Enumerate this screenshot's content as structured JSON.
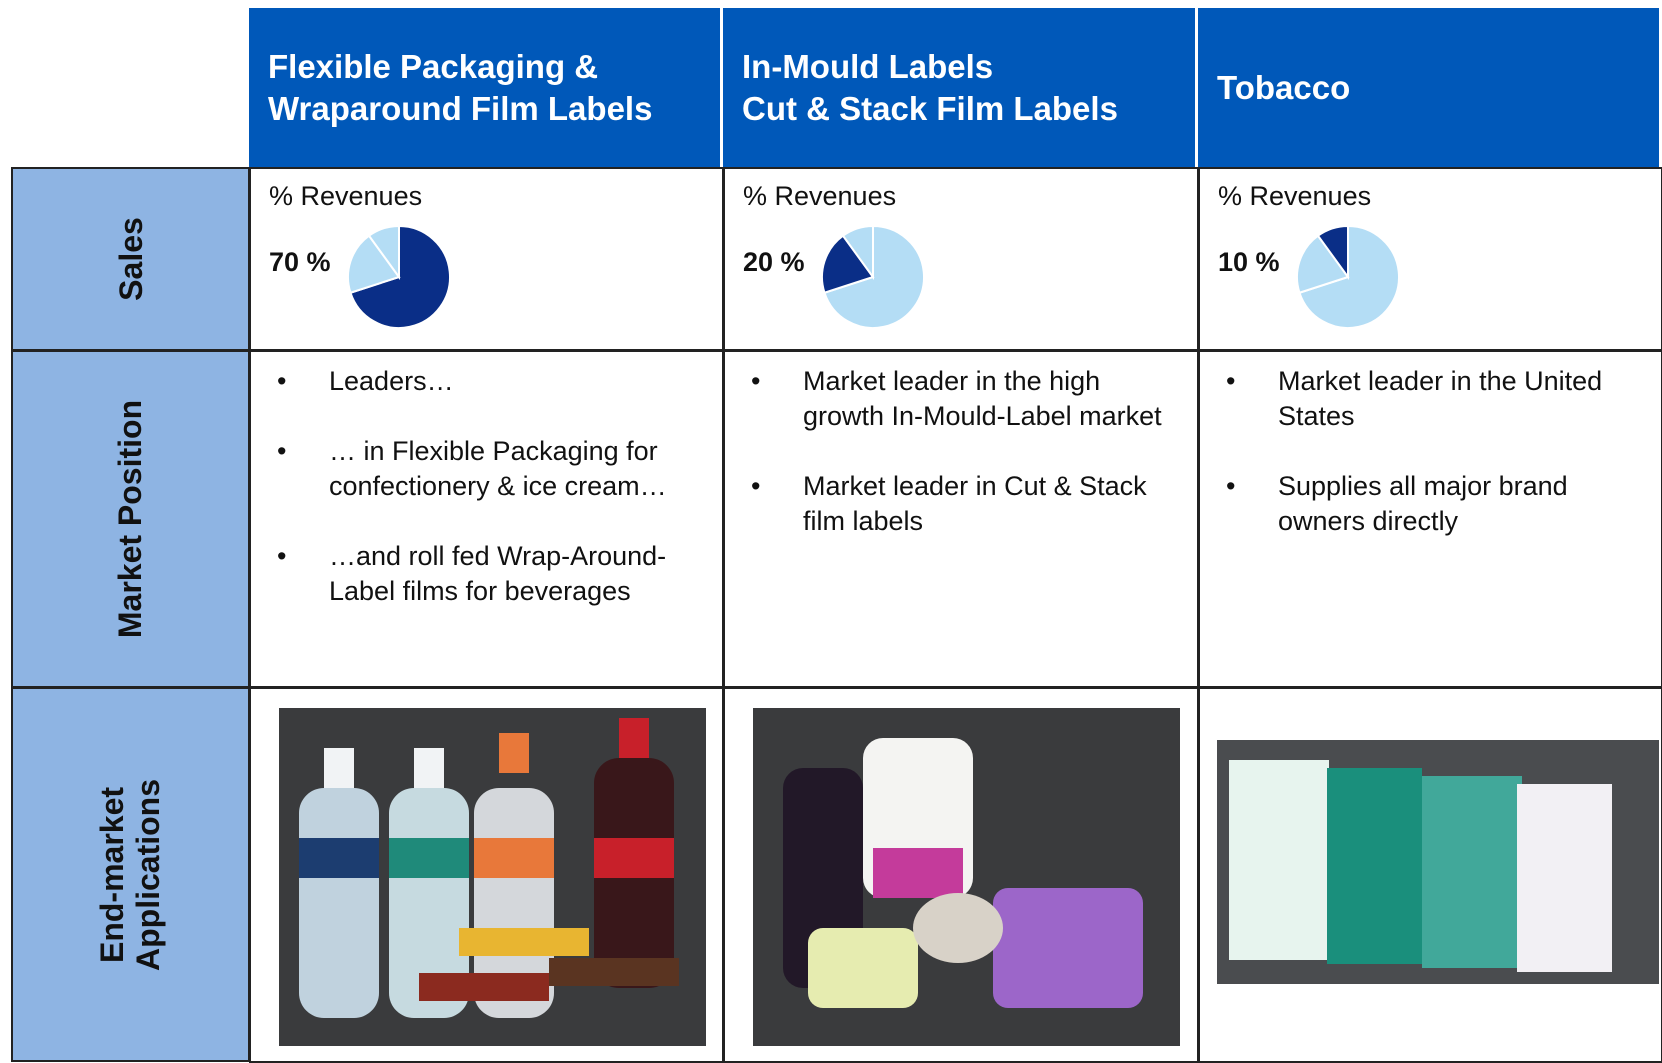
{
  "row_labels": {
    "sales": "Sales",
    "market_position": "Market Position",
    "applications": [
      "End-market",
      "Applications"
    ]
  },
  "revenue_split": {
    "type": "pie",
    "values": [
      70,
      20,
      10
    ],
    "value_labels": [
      "70 %",
      "20 %",
      "10 %"
    ],
    "highlight_color": "#0a2e87",
    "color": "#b4ddf5"
  },
  "columns": [
    {
      "header": [
        "Flexible Packaging &",
        "Wraparound Film Labels"
      ],
      "sales_label": "% Revenues",
      "bullets": [
        "Leaders…",
        "… in Flexible Packaging for confectionery & ice cream…",
        "…and roll fed Wrap-Around-Label films for beverages"
      ]
    },
    {
      "header": [
        "In-Mould Labels",
        "Cut & Stack Film Labels"
      ],
      "sales_label": "% Revenues",
      "bullets": [
        "Market leader in the high growth In-Mould-Label market",
        "Market leader in Cut & Stack film labels"
      ]
    },
    {
      "header": [
        "Tobacco"
      ],
      "sales_label": "% Revenues",
      "bullets": [
        "Market leader in the United States",
        "Supplies all major brand owners directly"
      ]
    }
  ]
}
